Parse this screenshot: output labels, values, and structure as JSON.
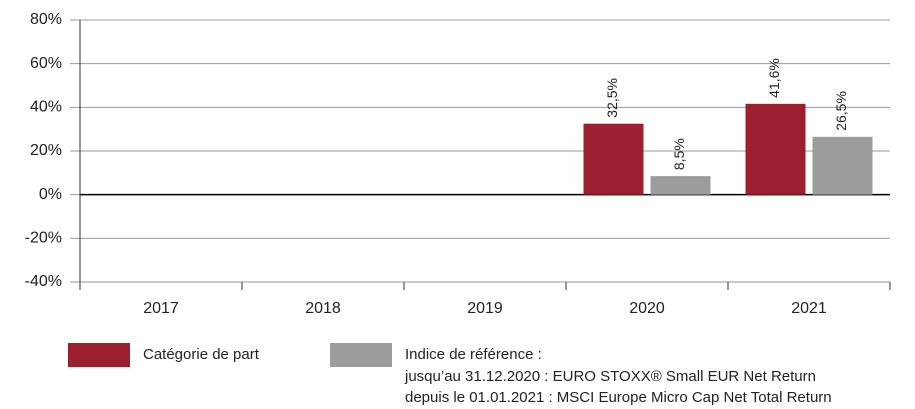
{
  "chart_data": {
    "type": "bar",
    "categories": [
      "2017",
      "2018",
      "2019",
      "2020",
      "2021"
    ],
    "series": [
      {
        "name": "Catégorie de part",
        "color": "#9b1f2e",
        "values": [
          null,
          null,
          null,
          32.5,
          41.6
        ],
        "value_labels": [
          null,
          null,
          null,
          "32,5%",
          "41,6%"
        ]
      },
      {
        "name": "Indice de référence :",
        "color": "#9c9c9c",
        "values": [
          null,
          null,
          null,
          8.5,
          26.5
        ],
        "value_labels": [
          null,
          null,
          null,
          "8,5%",
          "26,5%"
        ]
      }
    ],
    "legend_notes": [
      "jusqu’au 31.12.2020 : EURO STOXX® Small EUR Net Return",
      "depuis le 01.01.2021 : MSCI Europe Micro Cap Net Total Return"
    ],
    "ylim": [
      -40,
      80
    ],
    "yticks": [
      {
        "value": -40,
        "label": "-40%"
      },
      {
        "value": -20,
        "label": "-20%"
      },
      {
        "value": 0,
        "label": "0%"
      },
      {
        "value": 20,
        "label": "20%"
      },
      {
        "value": 40,
        "label": "40%"
      },
      {
        "value": 60,
        "label": "60%"
      },
      {
        "value": 80,
        "label": "80%"
      }
    ],
    "grid": true
  }
}
